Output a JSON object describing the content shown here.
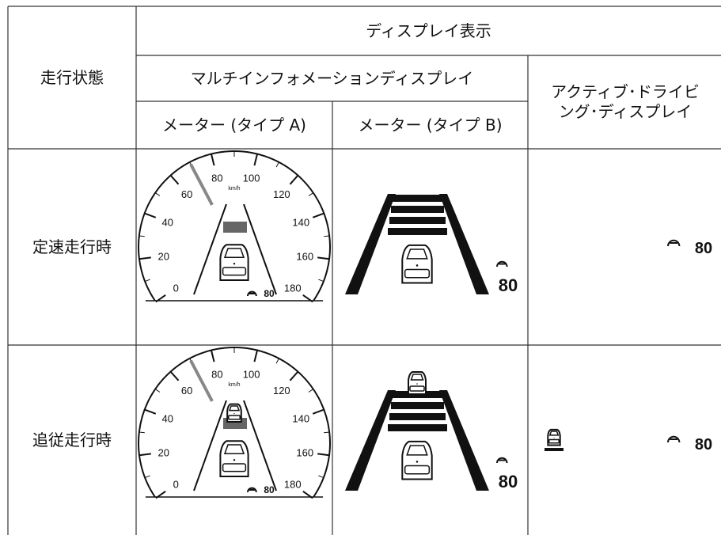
{
  "table": {
    "header": {
      "state": "走行状態",
      "display": "ディスプレイ表示",
      "multi": "マルチインフォメーションディスプレイ",
      "meter_a": "メーター (タイプ A)",
      "meter_b": "メーター (タイプ B)",
      "active": "アクティブ･ドライビング･ディスプレイ"
    },
    "rows": [
      {
        "state": "定速走行時"
      },
      {
        "state": "追従走行時"
      }
    ]
  },
  "gauge": {
    "labels": [
      "0",
      "20",
      "40",
      "60",
      "80",
      "100",
      "120",
      "140",
      "160",
      "180"
    ],
    "unit": "km/h",
    "set_speed": "80"
  }
}
